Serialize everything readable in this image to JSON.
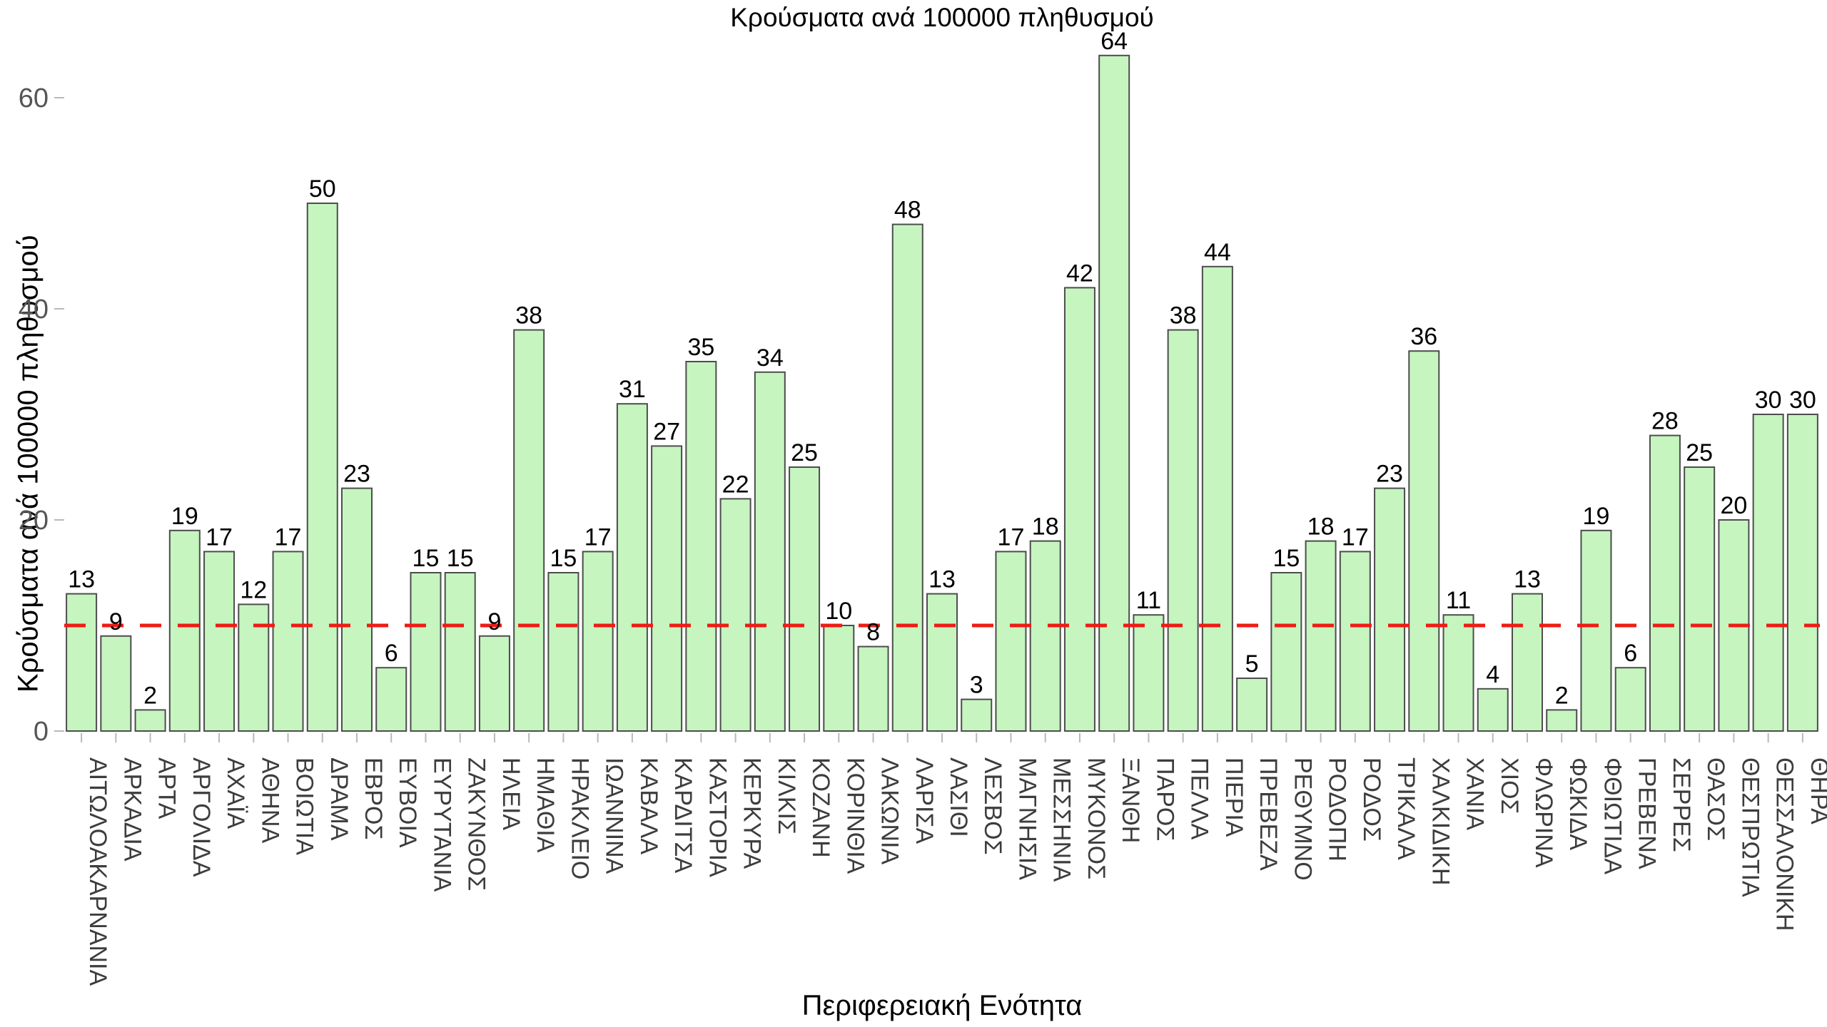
{
  "page": {
    "background": "#ffffff"
  },
  "chart_data": {
    "type": "bar",
    "title": "Κρούσματα ανά 100000 πληθυσμού",
    "xlabel": "Περιφερειακή Ενότητα",
    "ylabel": "Κρούσματα ανά 100000 πληθυσμού",
    "categories": [
      "ΑΙΤΩΛΟΑΚΑΡΝΑΝΙΑ",
      "ΑΡΚΑΔΙΑ",
      "ΑΡΤΑ",
      "ΑΡΓΟΛΙΔΑ",
      "ΑΧΑΪΑ",
      "ΑΘΗΝΑ",
      "ΒΟΙΩΤΙΑ",
      "ΔΡΑΜΑ",
      "ΕΒΡΟΣ",
      "ΕΥΒΟΙΑ",
      "ΕΥΡΥΤΑΝΙΑ",
      "ΖΑΚΥΝΘΟΣ",
      "ΗΛΕΙΑ",
      "ΗΜΑΘΙΑ",
      "ΗΡΑΚΛΕΙΟ",
      "ΙΩΑΝΝΙΝΑ",
      "ΚΑΒΑΛΑ",
      "ΚΑΡΔΙΤΣΑ",
      "ΚΑΣΤΟΡΙΑ",
      "ΚΕΡΚΥΡΑ",
      "ΚΙΛΚΙΣ",
      "ΚΟΖΑΝΗ",
      "ΚΟΡΙΝΘΙΑ",
      "ΛΑΚΩΝΙΑ",
      "ΛΑΡΙΣΑ",
      "ΛΑΣΙΘΙ",
      "ΛΕΣΒΟΣ",
      "ΜΑΓΝΗΣΙΑ",
      "ΜΕΣΣΗΝΙΑ",
      "ΜΥΚΟΝΟΣ",
      "ΞΑΝΘΗ",
      "ΠΑΡΟΣ",
      "ΠΕΛΛΑ",
      "ΠΙΕΡΙΑ",
      "ΠΡΕΒΕΖΑ",
      "ΡΕΘΥΜΝΟ",
      "ΡΟΔΟΠΗ",
      "ΡΟΔΟΣ",
      "ΤΡΙΚΑΛΑ",
      "ΧΑΛΚΙΔΙΚΗ",
      "ΧΑΝΙΑ",
      "ΧΙΟΣ",
      "ΦΛΩΡΙΝΑ",
      "ΦΩΚΙΔΑ",
      "ΦΘΙΩΤΙΔΑ",
      "ΓΡΕΒΕΝΑ",
      "ΣΕΡΡΕΣ",
      "ΘΑΣΟΣ",
      "ΘΕΣΠΡΩΤΙΑ",
      "ΘΕΣΣΑΛΟΝΙΚΗ",
      "ΘΗΡΑ"
    ],
    "values": [
      13,
      9,
      2,
      19,
      17,
      12,
      17,
      50,
      23,
      6,
      15,
      15,
      9,
      38,
      15,
      17,
      31,
      27,
      35,
      22,
      34,
      25,
      10,
      8,
      48,
      13,
      3,
      17,
      18,
      42,
      64,
      11,
      38,
      44,
      5,
      15,
      18,
      17,
      23,
      36,
      11,
      4,
      13,
      2,
      19,
      6,
      28,
      25,
      20,
      30,
      30
    ],
    "bar_value_labels_shown": true,
    "yticks": [
      0,
      20,
      40,
      60
    ],
    "ylim": [
      0,
      67
    ],
    "grid": false,
    "legend": false,
    "reference_line": {
      "value": 10,
      "style": "dashed",
      "color": "#ee1c14"
    },
    "colors": {
      "bar_fill": "#c6f5c0",
      "bar_stroke": "#4d4d4d",
      "value_label": "#000000",
      "y_tick_text": "#555555",
      "category_text": "#3d3d3d",
      "tick_mark": "#b9b9b9",
      "title_text": "#000000"
    }
  }
}
